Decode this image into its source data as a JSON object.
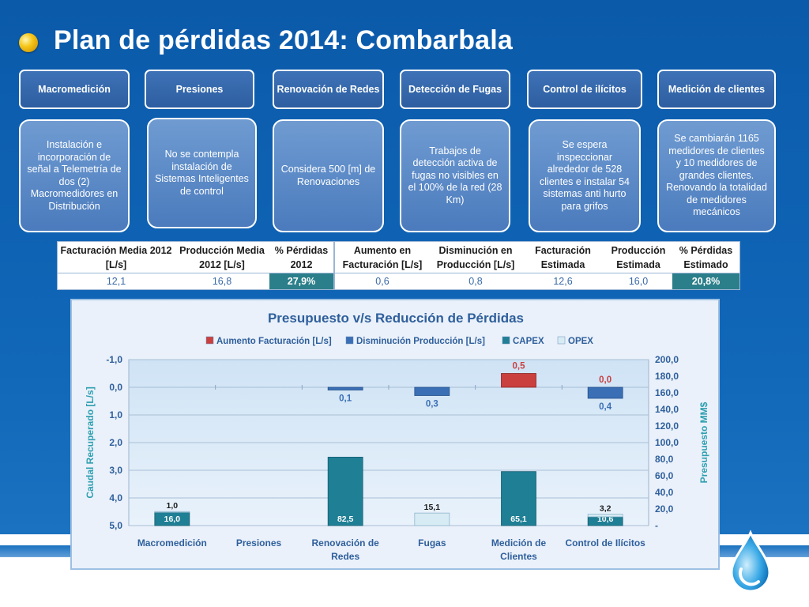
{
  "slide": {
    "title": "Plan de pérdidas 2014: Combarbala",
    "categories": [
      {
        "name": "Macromedición",
        "description": "Instalación e incorporación de señal a Telemetría de dos (2) Macromedidores en Distribución"
      },
      {
        "name": "Presiones",
        "description": "No se contempla instalación de Sistemas Inteligentes de control"
      },
      {
        "name": "Renovación de Redes",
        "description": "Considera 500 [m] de Renovaciones"
      },
      {
        "name": "Detección de Fugas",
        "description": "Trabajos de detección activa de fugas no visibles en el 100% de la red (28 Km)"
      },
      {
        "name": "Control de ilícitos",
        "description": "Se espera inspeccionar alrededor de 528 clientes e instalar 54 sistemas anti hurto para grifos"
      },
      {
        "name": "Medición de clientes",
        "description": "Se cambiarán 1165 medidores de clientes y 10 medidores de grandes clientes. Renovando la totalidad de medidores mecánicos"
      }
    ]
  },
  "metrics_table": {
    "headers": [
      "Facturación Media 2012 [L/s]",
      "Producción Media 2012 [L/s]",
      "% Pérdidas 2012",
      "Aumento en Facturación [L/s]",
      "Disminución en Producción [L/s]",
      "Facturación Estimada",
      "Producción Estimada",
      "% Pérdidas Estimado"
    ],
    "values": [
      "12,1",
      "16,8",
      "27,9%",
      "0,6",
      "0,8",
      "12,6",
      "16,0",
      "20,8%"
    ],
    "highlight_color": "#2b7f8a"
  },
  "chart_data": {
    "type": "bar",
    "title": "Presupuesto v/s Reducción de Pérdidas",
    "legend": [
      "Aumento Facturación [L/s]",
      "Disminución Producción [L/s]",
      "CAPEX",
      "OPEX"
    ],
    "legend_position": "top",
    "categories": [
      "Macromedición",
      "Presiones",
      "Renovación de Redes",
      "Fugas",
      "Medición de Clientes",
      "Control de Ilícitos"
    ],
    "left_axis": {
      "label": "Caudal Recuperado [L/s]",
      "ticks": [
        "-1,0",
        "0,0",
        "1,0",
        "2,0",
        "3,0",
        "4,0",
        "5,0"
      ],
      "range": [
        -1,
        5
      ],
      "inverted": true
    },
    "right_axis": {
      "label": "Presupuesto MM$",
      "ticks": [
        "200,0",
        "180,0",
        "160,0",
        "140,0",
        "120,0",
        "100,0",
        "80,0",
        "60,0",
        "40,0",
        "20,0",
        "-"
      ],
      "range": [
        0,
        200
      ]
    },
    "series": [
      {
        "name": "Aumento Facturación [L/s]",
        "axis": "left",
        "color": "#c9403f",
        "values": [
          null,
          null,
          null,
          null,
          0.5,
          0.0
        ],
        "labels": [
          "",
          "",
          "",
          "",
          "0,5",
          "0,0"
        ]
      },
      {
        "name": "Disminución Producción [L/s]",
        "axis": "left",
        "color": "#3b6fb5",
        "values": [
          null,
          null,
          0.1,
          0.3,
          null,
          0.4
        ],
        "labels": [
          "",
          "",
          "0,1",
          "0,3",
          "",
          "0,4"
        ]
      },
      {
        "name": "CAPEX",
        "axis": "right",
        "color": "#1f7f95",
        "values": [
          16.0,
          null,
          82.5,
          null,
          65.1,
          10.6
        ],
        "labels": [
          "16,0",
          "",
          "82,5",
          "",
          "65,1",
          "10,6"
        ]
      },
      {
        "name": "OPEX",
        "axis": "right",
        "color": "#d7ebf4",
        "values": [
          1.0,
          null,
          null,
          15.1,
          null,
          3.2
        ],
        "labels": [
          "1,0",
          "",
          "",
          "15,1",
          "",
          "3,2"
        ]
      }
    ],
    "grid": true
  }
}
